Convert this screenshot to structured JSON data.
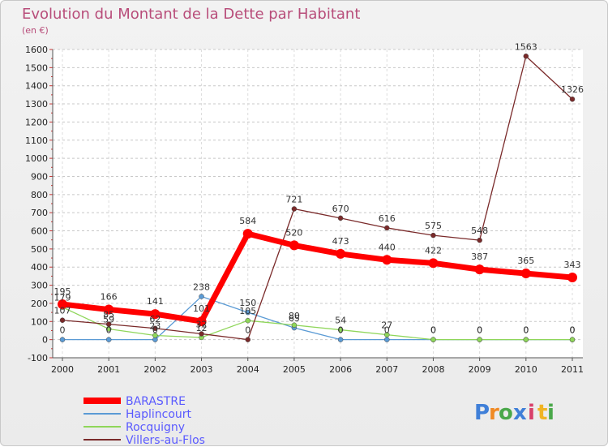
{
  "chart_data": {
    "type": "line",
    "title": "Evolution du Montant de la Dette par Habitant",
    "subtitle": "(en €)",
    "xlabel": "",
    "ylabel": "",
    "ylim": [
      -100,
      1600
    ],
    "yticks": [
      -100,
      0,
      100,
      200,
      300,
      400,
      500,
      600,
      700,
      800,
      900,
      1000,
      1100,
      1200,
      1300,
      1400,
      1500,
      1600
    ],
    "categories": [
      "2000",
      "2001",
      "2002",
      "2003",
      "2004",
      "2005",
      "2006",
      "2007",
      "2008",
      "2009",
      "2010",
      "2011"
    ],
    "series": [
      {
        "name": "BARASTRE",
        "color": "#ff0000",
        "values": [
          195,
          166,
          141,
          101,
          584,
          520,
          473,
          440,
          422,
          387,
          365,
          343
        ],
        "labels": [
          "195",
          "166",
          "141",
          "101",
          "584",
          "520",
          "473",
          "440",
          "422",
          "387",
          "365",
          "343"
        ]
      },
      {
        "name": "Haplincourt",
        "color": "#5b9bd5",
        "values": [
          0,
          0,
          0,
          238,
          150,
          65,
          0,
          0,
          0,
          0,
          0,
          0
        ],
        "labels": [
          "0",
          "0",
          "0",
          "238",
          "150",
          "65",
          "0",
          "0",
          "0",
          "0",
          "0",
          "0"
        ]
      },
      {
        "name": "Rocquigny",
        "color": "#8fd65a",
        "values": [
          179,
          59,
          23,
          12,
          105,
          80,
          54,
          27,
          0,
          0,
          0,
          0
        ],
        "labels": [
          "179",
          "59",
          "23",
          "12",
          "105",
          "80",
          "54",
          "27",
          "0",
          "0",
          "0",
          "0"
        ]
      },
      {
        "name": "Villers-au-Flos",
        "color": "#7a2a2a",
        "values": [
          107,
          85,
          62,
          32,
          0,
          721,
          670,
          616,
          575,
          548,
          1563,
          1326
        ],
        "labels": [
          "107",
          "85",
          "62",
          "32",
          "0",
          "721",
          "670",
          "616",
          "575",
          "548",
          "1563",
          "1326"
        ]
      }
    ]
  },
  "brand": {
    "letters": [
      "P",
      "r",
      "o",
      "x",
      "i",
      "t",
      "i"
    ],
    "colors": [
      "#3f7fd8",
      "#f08a24",
      "#4aa84a",
      "#3f7fd8",
      "#d83f6a",
      "#f0b424",
      "#4aa84a"
    ]
  }
}
